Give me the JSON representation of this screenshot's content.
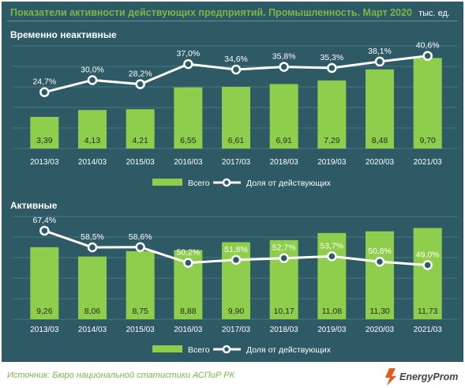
{
  "header": {
    "title": "Показатели активности действующих предприятий. Промышленность. Март 2020",
    "unit": "тыс. ед."
  },
  "footer": {
    "source": "Источник: Бюро национальной  статистики АСПиР РК",
    "brand": "EnergyProm"
  },
  "colors": {
    "background": "#2e5a66",
    "bar": "#8fce4c",
    "line": "#ffffff",
    "title_text": "#7ab648",
    "footer_text": "#7ab648",
    "brand": "#e65a1e"
  },
  "legend": {
    "bars": "Всего",
    "line": "Доля от действующих"
  },
  "chart_data": [
    {
      "type": "bar",
      "title": "Временно неактивные",
      "categories": [
        "2013/03",
        "2014/03",
        "2015/03",
        "2016/03",
        "2017/03",
        "2018/03",
        "2019/03",
        "2020/03",
        "2021/03"
      ],
      "series": [
        {
          "name": "Всего",
          "type": "bar",
          "values": [
            3.39,
            4.13,
            4.21,
            6.55,
            6.61,
            6.91,
            7.29,
            8.48,
            9.7
          ],
          "labels": [
            "3,39",
            "4,13",
            "4,21",
            "6,55",
            "6,61",
            "6,91",
            "7,29",
            "8,48",
            "9,70"
          ]
        },
        {
          "name": "Доля от действующих",
          "type": "line",
          "values": [
            24.7,
            30.0,
            28.2,
            37.0,
            34.6,
            35.8,
            35.3,
            38.1,
            40.6
          ],
          "labels": [
            "24,7%",
            "30,0%",
            "28,2%",
            "37,0%",
            "34,6%",
            "35,8%",
            "35,3%",
            "38,1%",
            "40,6%"
          ]
        }
      ],
      "bar_ylim": [
        0,
        11
      ],
      "line_ylim": [
        0,
        45
      ],
      "legend": "bottom"
    },
    {
      "type": "bar",
      "title": "Активные",
      "categories": [
        "2013/03",
        "2014/03",
        "2015/03",
        "2016/03",
        "2017/03",
        "2018/03",
        "2019/03",
        "2020/03",
        "2021/03"
      ],
      "series": [
        {
          "name": "Всего",
          "type": "bar",
          "values": [
            9.26,
            8.06,
            8.75,
            8.88,
            9.9,
            10.17,
            11.08,
            11.3,
            11.73
          ],
          "labels": [
            "9,26",
            "8,06",
            "8,75",
            "8,88",
            "9,90",
            "10,17",
            "11,08",
            "11,30",
            "11,73"
          ]
        },
        {
          "name": "Доля от действующих",
          "type": "line",
          "values": [
            67.4,
            58.5,
            58.6,
            50.2,
            51.8,
            52.7,
            53.7,
            50.8,
            49.0
          ],
          "labels": [
            "67,4%",
            "58,5%",
            "58,6%",
            "50,2%",
            "51,8%",
            "52,7%",
            "53,7%",
            "50,8%",
            "49,0%"
          ]
        }
      ],
      "bar_ylim": [
        0,
        13.2
      ],
      "line_ylim": [
        20,
        75
      ],
      "legend": "bottom"
    }
  ]
}
